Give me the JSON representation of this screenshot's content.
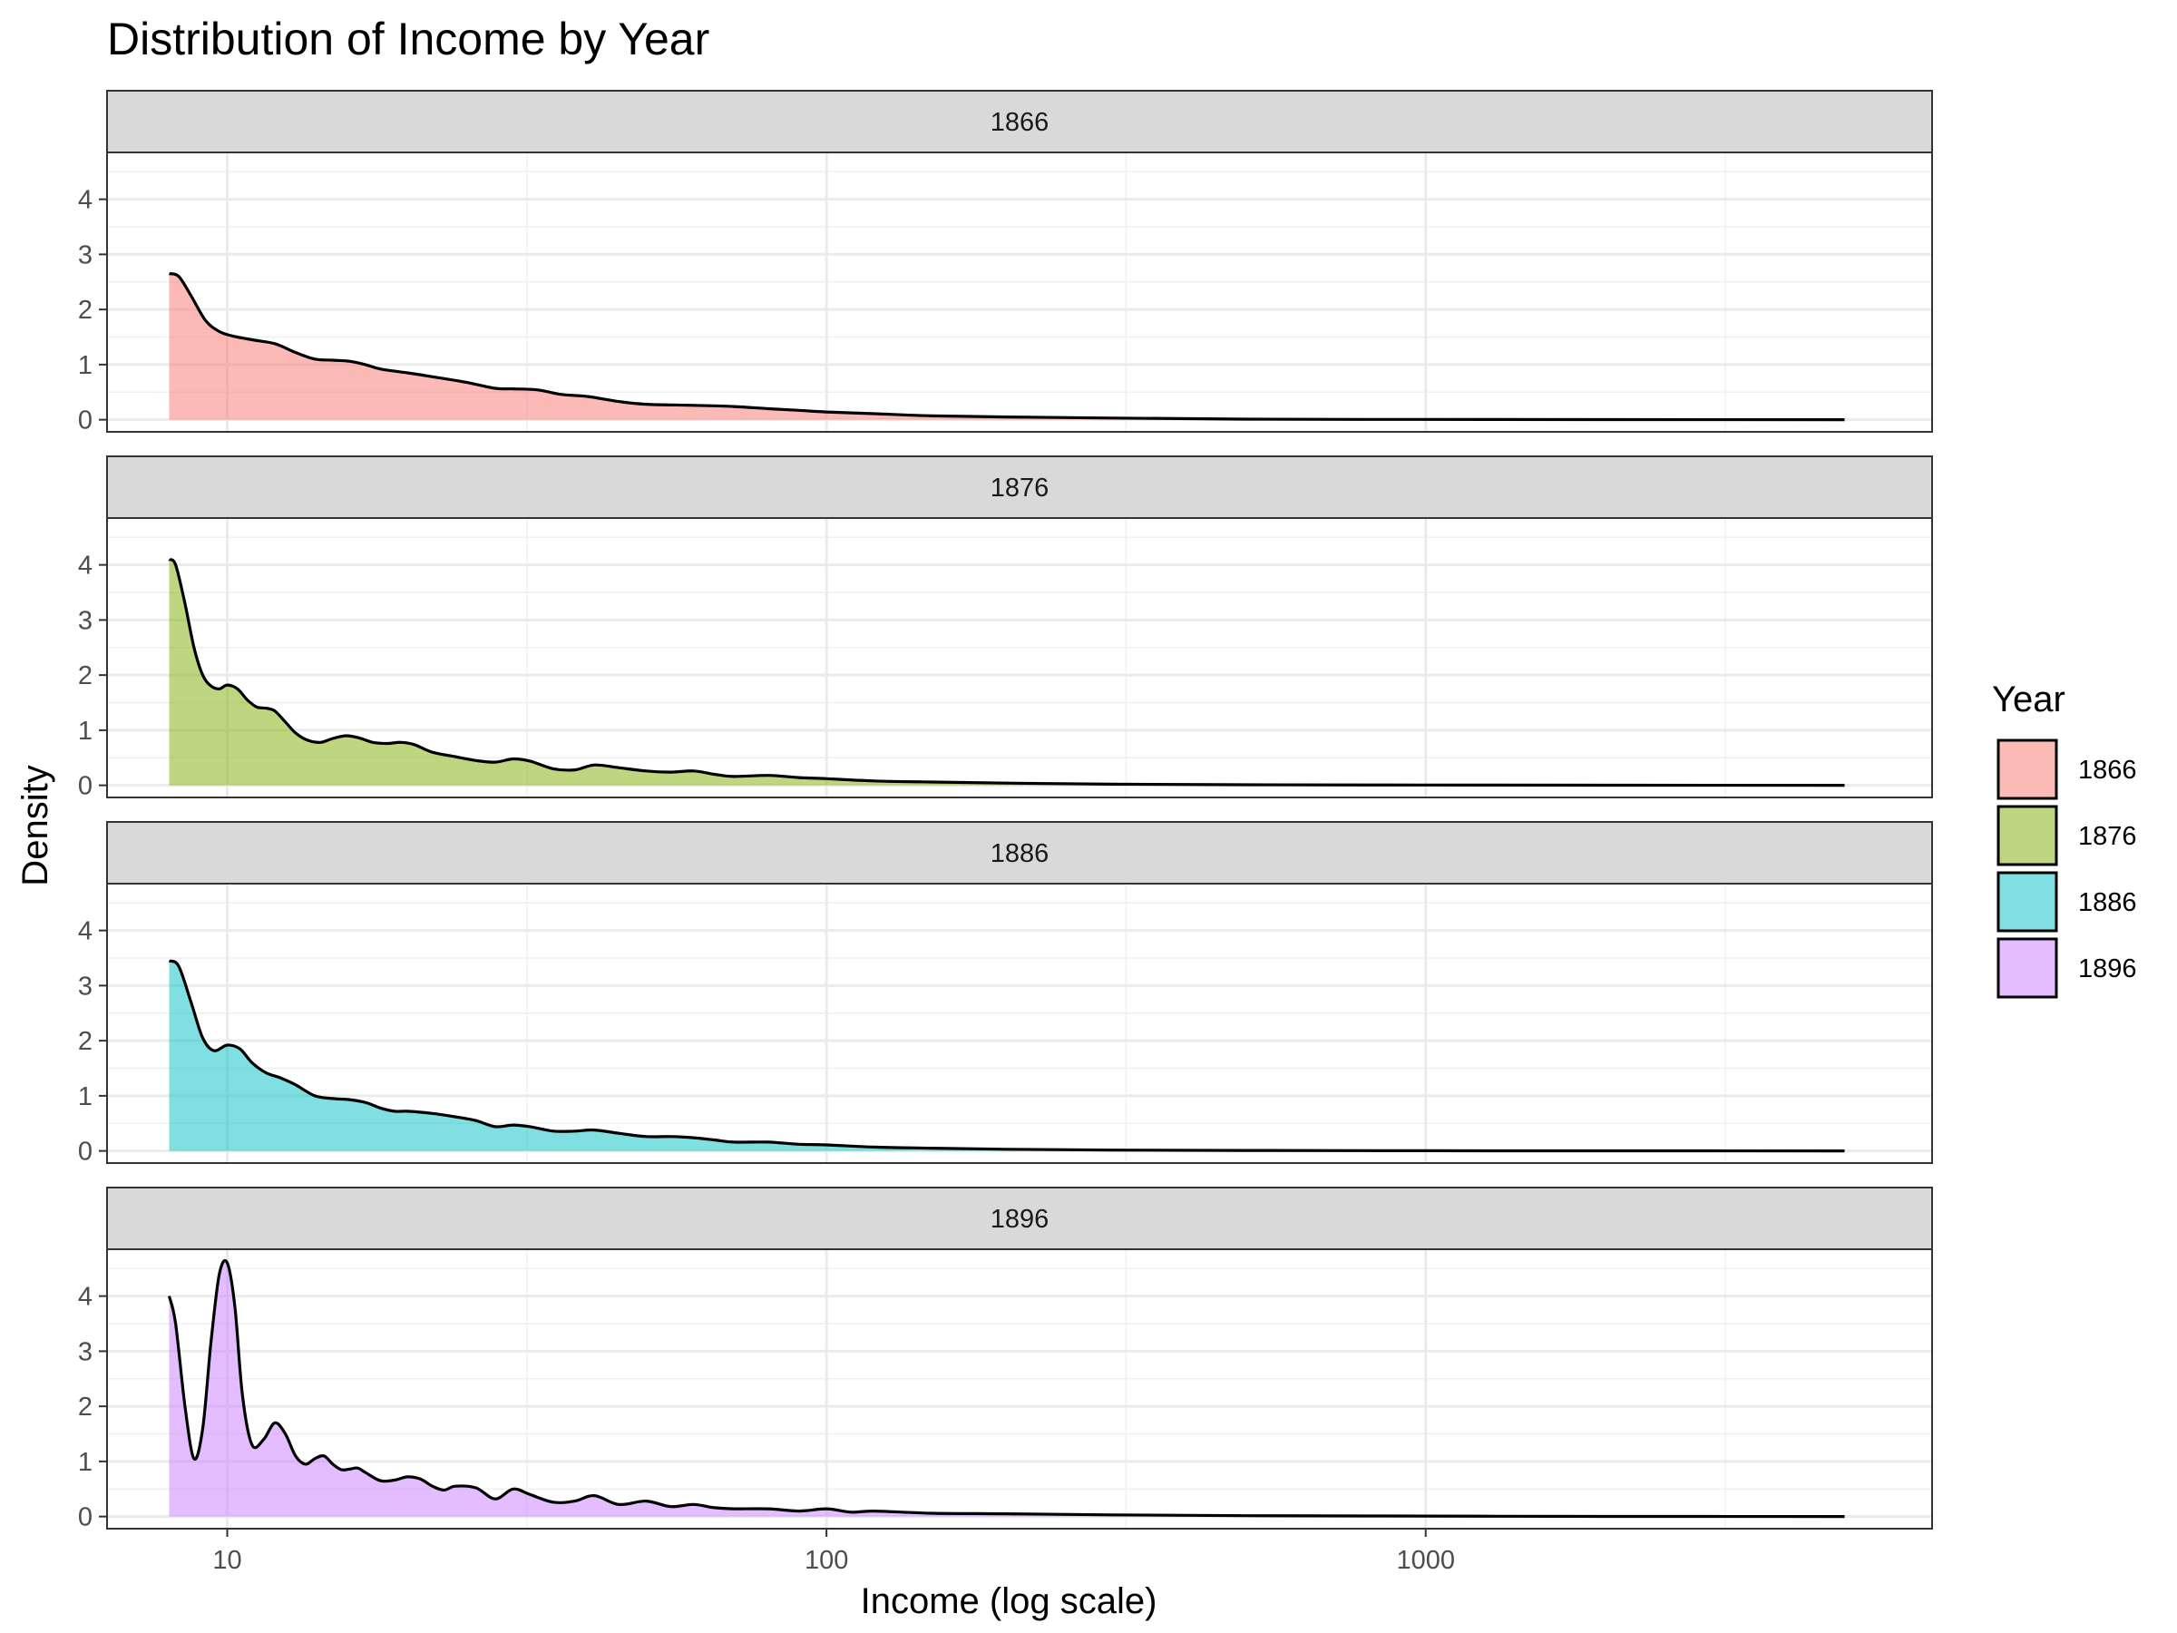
{
  "chart_data": {
    "type": "area",
    "title": "Distribution of Income by Year",
    "xlabel": "Income (log scale)",
    "ylabel": "Density",
    "x_scale": "log10",
    "xlim": [
      6.3,
      7000
    ],
    "x_ticks": [
      10,
      100,
      1000
    ],
    "x_tick_labels": [
      "10",
      "100",
      "1000"
    ],
    "ylim": [
      -0.22,
      4.85
    ],
    "y_ticks": [
      0,
      1,
      2,
      3,
      4
    ],
    "y_tick_labels": [
      "0",
      "1",
      "2",
      "3",
      "4"
    ],
    "grid": true,
    "facet": "rows",
    "legend": {
      "title": "Year",
      "position": "right"
    },
    "series": [
      {
        "name": "1866",
        "color": "#F8766D",
        "x": [
          8,
          8.3,
          8.7,
          9.2,
          9.7,
          10.2,
          11,
          12,
          13,
          14,
          15,
          16,
          17,
          18,
          20,
          22,
          25,
          28,
          30,
          33,
          36,
          40,
          45,
          50,
          60,
          70,
          80,
          90,
          100,
          120,
          150,
          200,
          300,
          500,
          1000,
          2000,
          5000
        ],
        "y": [
          2.65,
          2.6,
          2.25,
          1.8,
          1.6,
          1.52,
          1.45,
          1.38,
          1.22,
          1.1,
          1.08,
          1.06,
          1.0,
          0.92,
          0.85,
          0.78,
          0.68,
          0.57,
          0.56,
          0.54,
          0.46,
          0.42,
          0.33,
          0.28,
          0.26,
          0.24,
          0.2,
          0.17,
          0.14,
          0.11,
          0.07,
          0.05,
          0.03,
          0.01,
          0.005,
          0.002,
          0.001
        ]
      },
      {
        "name": "1876",
        "color": "#7CAE00",
        "x": [
          8,
          8.2,
          8.5,
          8.8,
          9.1,
          9.4,
          9.7,
          10,
          10.4,
          10.8,
          11.2,
          11.6,
          12,
          12.5,
          13,
          13.6,
          14.3,
          15,
          15.8,
          16.6,
          17.5,
          18.5,
          19.5,
          20.5,
          22,
          24,
          26,
          28,
          30,
          32,
          35,
          38,
          41,
          45,
          50,
          55,
          60,
          65,
          70,
          80,
          90,
          100,
          120,
          150,
          200,
          300,
          500,
          1000,
          2000,
          5000
        ],
        "y": [
          4.1,
          4.0,
          3.3,
          2.5,
          2.0,
          1.8,
          1.75,
          1.82,
          1.75,
          1.55,
          1.42,
          1.4,
          1.35,
          1.15,
          0.95,
          0.82,
          0.78,
          0.85,
          0.9,
          0.86,
          0.78,
          0.76,
          0.78,
          0.74,
          0.6,
          0.52,
          0.45,
          0.42,
          0.48,
          0.44,
          0.3,
          0.28,
          0.37,
          0.32,
          0.26,
          0.24,
          0.26,
          0.2,
          0.16,
          0.18,
          0.14,
          0.12,
          0.08,
          0.06,
          0.04,
          0.02,
          0.01,
          0.005,
          0.002,
          0.001
        ]
      },
      {
        "name": "1886",
        "color": "#00BFC4",
        "x": [
          8,
          8.3,
          8.7,
          9.1,
          9.5,
          10,
          10.5,
          11,
          11.6,
          12.3,
          13,
          14,
          15,
          16,
          17,
          18,
          19,
          20,
          22,
          24,
          26,
          28,
          30,
          32,
          35,
          38,
          41,
          45,
          50,
          55,
          60,
          65,
          70,
          80,
          90,
          100,
          120,
          150,
          200,
          300,
          500,
          1000,
          2000,
          5000
        ],
        "y": [
          3.45,
          3.35,
          2.7,
          2.05,
          1.82,
          1.92,
          1.85,
          1.6,
          1.42,
          1.32,
          1.2,
          1.0,
          0.95,
          0.93,
          0.88,
          0.78,
          0.72,
          0.72,
          0.68,
          0.62,
          0.55,
          0.44,
          0.47,
          0.44,
          0.36,
          0.36,
          0.38,
          0.32,
          0.26,
          0.26,
          0.24,
          0.2,
          0.16,
          0.16,
          0.12,
          0.11,
          0.07,
          0.05,
          0.03,
          0.015,
          0.008,
          0.004,
          0.002,
          0.001
        ]
      },
      {
        "name": "1896",
        "color": "#C77CFF",
        "x": [
          8,
          8.2,
          8.5,
          8.8,
          9.1,
          9.4,
          9.7,
          10,
          10.3,
          10.6,
          11,
          11.5,
          12,
          12.5,
          13,
          13.5,
          14,
          14.5,
          15,
          15.5,
          16,
          16.5,
          17,
          18,
          19,
          20,
          21,
          22,
          23,
          24,
          26,
          28,
          30,
          32,
          35,
          38,
          41,
          45,
          50,
          55,
          60,
          65,
          70,
          80,
          90,
          100,
          110,
          120,
          150,
          200,
          300,
          500,
          1000,
          2000,
          5000
        ],
        "y": [
          4.0,
          3.5,
          2.0,
          1.05,
          1.6,
          3.2,
          4.4,
          4.6,
          3.8,
          2.2,
          1.3,
          1.4,
          1.7,
          1.5,
          1.1,
          0.95,
          1.05,
          1.1,
          0.95,
          0.85,
          0.86,
          0.88,
          0.8,
          0.65,
          0.66,
          0.72,
          0.68,
          0.55,
          0.48,
          0.55,
          0.52,
          0.32,
          0.5,
          0.4,
          0.26,
          0.28,
          0.38,
          0.22,
          0.28,
          0.18,
          0.22,
          0.16,
          0.14,
          0.14,
          0.1,
          0.14,
          0.08,
          0.1,
          0.06,
          0.05,
          0.03,
          0.015,
          0.008,
          0.003,
          0.001
        ]
      }
    ]
  }
}
